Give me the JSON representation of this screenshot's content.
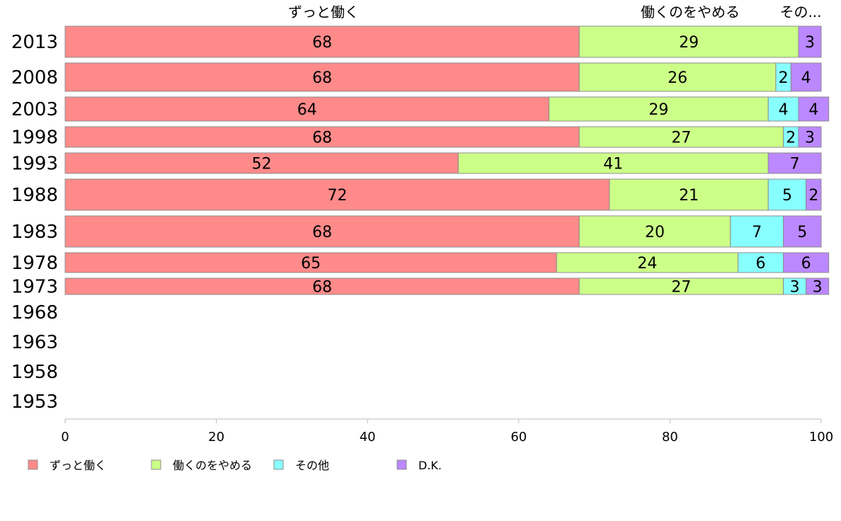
{
  "chart_data": {
    "type": "bar",
    "orientation": "horizontal",
    "stacked": true,
    "categories": [
      "2013",
      "2008",
      "2003",
      "1998",
      "1993",
      "1988",
      "1983",
      "1978",
      "1973",
      "1968",
      "1963",
      "1958",
      "1953"
    ],
    "series": [
      {
        "name": "ずっと働く",
        "color": "#ff8a8a",
        "values": [
          68,
          68,
          64,
          68,
          52,
          72,
          68,
          65,
          68,
          null,
          null,
          null,
          null
        ]
      },
      {
        "name": "働くのをやめる",
        "color": "#ccff88",
        "values": [
          29,
          26,
          29,
          27,
          41,
          21,
          20,
          24,
          27,
          null,
          null,
          null,
          null
        ]
      },
      {
        "name": "その他",
        "color": "#88ffff",
        "values": [
          0,
          2,
          4,
          2,
          0,
          5,
          7,
          6,
          3,
          null,
          null,
          null,
          null
        ]
      },
      {
        "name": "D.K.",
        "color": "#bb88ff",
        "values": [
          3,
          4,
          4,
          3,
          7,
          2,
          5,
          6,
          3,
          null,
          null,
          null,
          null
        ]
      }
    ],
    "top_labels": [
      "ずっと働く",
      "働くのをやめる",
      "その..."
    ],
    "xlim": [
      0,
      100
    ],
    "x_ticks": [
      "0",
      "20",
      "40",
      "60",
      "80",
      "100"
    ],
    "grid": false,
    "legend_position": "bottom-left"
  }
}
